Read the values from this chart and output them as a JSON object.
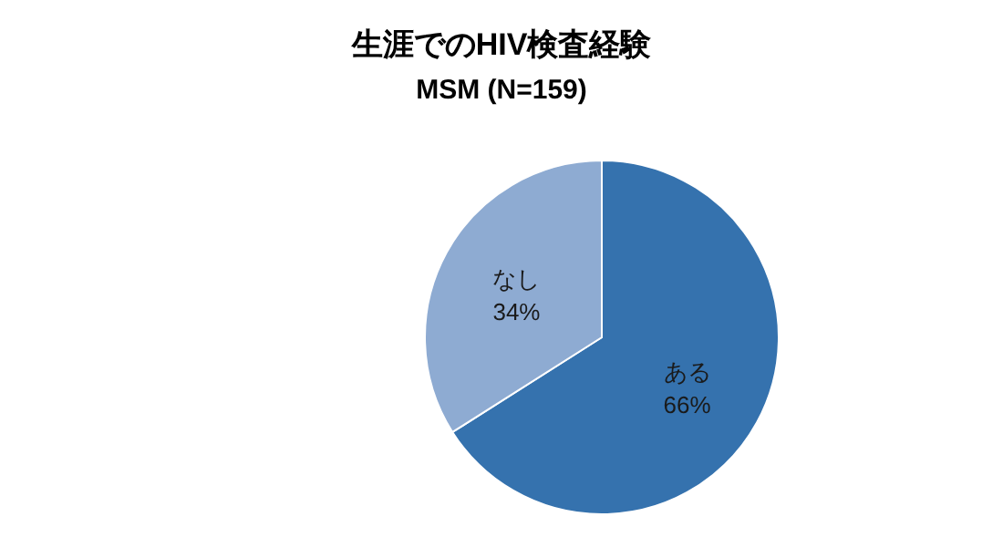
{
  "chart_data": {
    "type": "pie",
    "title": "生涯でのHIV検査経験",
    "subtitle": "MSM (N=159)",
    "categories": [
      "ある",
      "なし"
    ],
    "values": [
      66,
      34
    ],
    "colors": [
      "#3572ae",
      "#8eabd2"
    ],
    "value_labels": [
      "66%",
      "34%"
    ],
    "legend": false
  }
}
